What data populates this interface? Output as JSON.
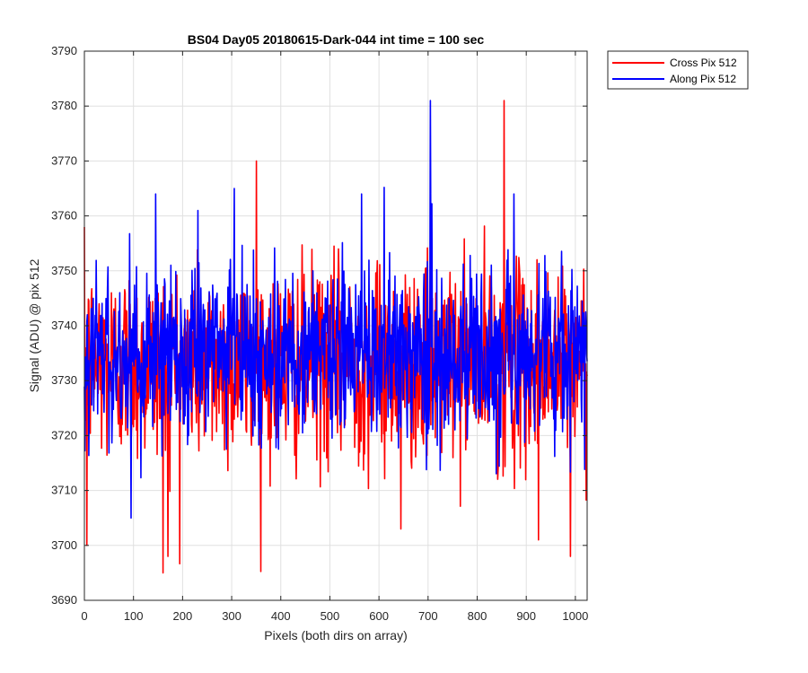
{
  "chart_data": {
    "type": "line",
    "title": "BS04 Day05 20180615-Dark-044 int time = 100 sec",
    "xlabel": "Pixels (both dirs on array)",
    "ylabel": "Signal (ADU) @ pix 512",
    "xlim": [
      0,
      1024
    ],
    "ylim": [
      3690,
      3790
    ],
    "xticks": [
      0,
      100,
      200,
      300,
      400,
      500,
      600,
      700,
      800,
      900,
      1000
    ],
    "yticks": [
      3690,
      3700,
      3710,
      3720,
      3730,
      3740,
      3750,
      3760,
      3770,
      3780,
      3790
    ],
    "grid": true,
    "legend_position": "outside top-right",
    "series": [
      {
        "name": "Cross Pix 512",
        "color": "#ff0000",
        "mean": 3733,
        "range": [
          3695,
          3781
        ],
        "notable_points": [
          {
            "x": 5,
            "y": 3700
          },
          {
            "x": 160,
            "y": 3695
          },
          {
            "x": 170,
            "y": 3698
          },
          {
            "x": 350,
            "y": 3770
          },
          {
            "x": 645,
            "y": 3703
          },
          {
            "x": 855,
            "y": 3781
          },
          {
            "x": 925,
            "y": 3701
          },
          {
            "x": 990,
            "y": 3698
          }
        ]
      },
      {
        "name": "Along Pix 512",
        "color": "#0000ff",
        "mean": 3735,
        "range": [
          3705,
          3781
        ],
        "notable_points": [
          {
            "x": 95,
            "y": 3705
          },
          {
            "x": 145,
            "y": 3764
          },
          {
            "x": 305,
            "y": 3765
          },
          {
            "x": 565,
            "y": 3764
          },
          {
            "x": 705,
            "y": 3781
          },
          {
            "x": 875,
            "y": 3764
          }
        ]
      }
    ]
  }
}
